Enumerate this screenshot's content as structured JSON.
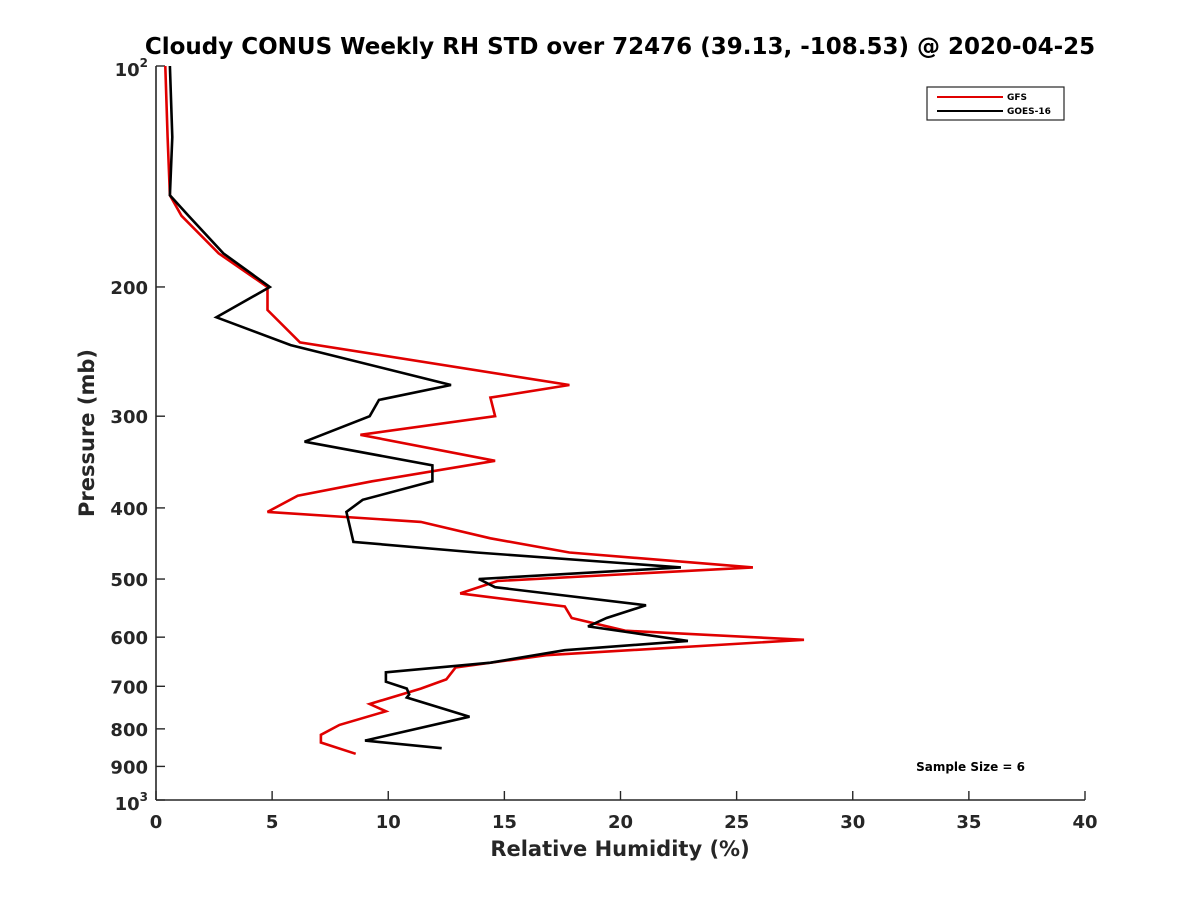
{
  "chart_data": {
    "type": "line",
    "title": "Cloudy CONUS Weekly RH STD over 72476 (39.13, -108.53) @ 2020-04-25",
    "xlabel": "Relative Humidity (%)",
    "ylabel": "Pressure (mb)",
    "xlim": [
      0,
      40
    ],
    "ylim": [
      100,
      1000
    ],
    "y_scale": "log",
    "y_reversed": true,
    "grid": false,
    "legend_position": "top-right",
    "x_ticks": [
      0,
      5,
      10,
      15,
      20,
      25,
      30,
      35,
      40
    ],
    "x_tick_labels": [
      "0",
      "5",
      "10",
      "15",
      "20",
      "25",
      "30",
      "35",
      "40"
    ],
    "y_ticks": [
      200,
      300,
      400,
      500,
      600,
      700,
      800,
      900
    ],
    "y_tick_labels": [
      "200",
      "300",
      "400",
      "500",
      "600",
      "700",
      "800",
      "900"
    ],
    "y_top_label": {
      "base": "10",
      "exp": "2"
    },
    "y_bottom_label": {
      "base": "10",
      "exp": "3"
    },
    "annotation": "Sample Size = 6",
    "series": [
      {
        "name": "GFS",
        "color": "#e00000",
        "points": [
          {
            "x": 0.4,
            "y": 100
          },
          {
            "x": 0.5,
            "y": 125
          },
          {
            "x": 0.6,
            "y": 150
          },
          {
            "x": 1.1,
            "y": 160
          },
          {
            "x": 2.7,
            "y": 180
          },
          {
            "x": 4.8,
            "y": 200
          },
          {
            "x": 4.8,
            "y": 215
          },
          {
            "x": 6.2,
            "y": 238
          },
          {
            "x": 17.8,
            "y": 272
          },
          {
            "x": 14.4,
            "y": 283
          },
          {
            "x": 14.6,
            "y": 300
          },
          {
            "x": 8.8,
            "y": 318
          },
          {
            "x": 14.6,
            "y": 345
          },
          {
            "x": 9.3,
            "y": 368
          },
          {
            "x": 6.1,
            "y": 385
          },
          {
            "x": 4.8,
            "y": 405
          },
          {
            "x": 11.4,
            "y": 418
          },
          {
            "x": 14.4,
            "y": 440
          },
          {
            "x": 17.8,
            "y": 460
          },
          {
            "x": 25.7,
            "y": 482
          },
          {
            "x": 14.7,
            "y": 503
          },
          {
            "x": 13.1,
            "y": 523
          },
          {
            "x": 17.6,
            "y": 545
          },
          {
            "x": 17.9,
            "y": 565
          },
          {
            "x": 20.2,
            "y": 588
          },
          {
            "x": 27.9,
            "y": 605
          },
          {
            "x": 16.8,
            "y": 635
          },
          {
            "x": 12.9,
            "y": 660
          },
          {
            "x": 12.5,
            "y": 685
          },
          {
            "x": 11.4,
            "y": 705
          },
          {
            "x": 9.2,
            "y": 740
          },
          {
            "x": 9.9,
            "y": 757
          },
          {
            "x": 7.9,
            "y": 790
          },
          {
            "x": 7.1,
            "y": 815
          },
          {
            "x": 7.1,
            "y": 835
          },
          {
            "x": 8.6,
            "y": 865
          }
        ]
      },
      {
        "name": "GOES-16",
        "color": "#000000",
        "points": [
          {
            "x": 0.6,
            "y": 100
          },
          {
            "x": 0.7,
            "y": 125
          },
          {
            "x": 0.6,
            "y": 150
          },
          {
            "x": 1.4,
            "y": 160
          },
          {
            "x": 2.9,
            "y": 180
          },
          {
            "x": 4.9,
            "y": 200
          },
          {
            "x": 2.6,
            "y": 220
          },
          {
            "x": 5.8,
            "y": 240
          },
          {
            "x": 12.7,
            "y": 272
          },
          {
            "x": 9.6,
            "y": 285
          },
          {
            "x": 9.2,
            "y": 300
          },
          {
            "x": 6.4,
            "y": 325
          },
          {
            "x": 11.9,
            "y": 350
          },
          {
            "x": 11.9,
            "y": 368
          },
          {
            "x": 8.9,
            "y": 390
          },
          {
            "x": 8.2,
            "y": 405
          },
          {
            "x": 8.5,
            "y": 445
          },
          {
            "x": 13.8,
            "y": 460
          },
          {
            "x": 22.6,
            "y": 482
          },
          {
            "x": 13.9,
            "y": 500
          },
          {
            "x": 14.6,
            "y": 513
          },
          {
            "x": 21.1,
            "y": 543
          },
          {
            "x": 19.4,
            "y": 565
          },
          {
            "x": 18.6,
            "y": 580
          },
          {
            "x": 22.9,
            "y": 607
          },
          {
            "x": 17.6,
            "y": 625
          },
          {
            "x": 14.4,
            "y": 650
          },
          {
            "x": 9.9,
            "y": 670
          },
          {
            "x": 9.9,
            "y": 690
          },
          {
            "x": 10.8,
            "y": 705
          },
          {
            "x": 10.9,
            "y": 718
          },
          {
            "x": 10.8,
            "y": 725
          },
          {
            "x": 13.5,
            "y": 770
          },
          {
            "x": 9.0,
            "y": 830
          },
          {
            "x": 12.3,
            "y": 850
          }
        ]
      }
    ]
  }
}
